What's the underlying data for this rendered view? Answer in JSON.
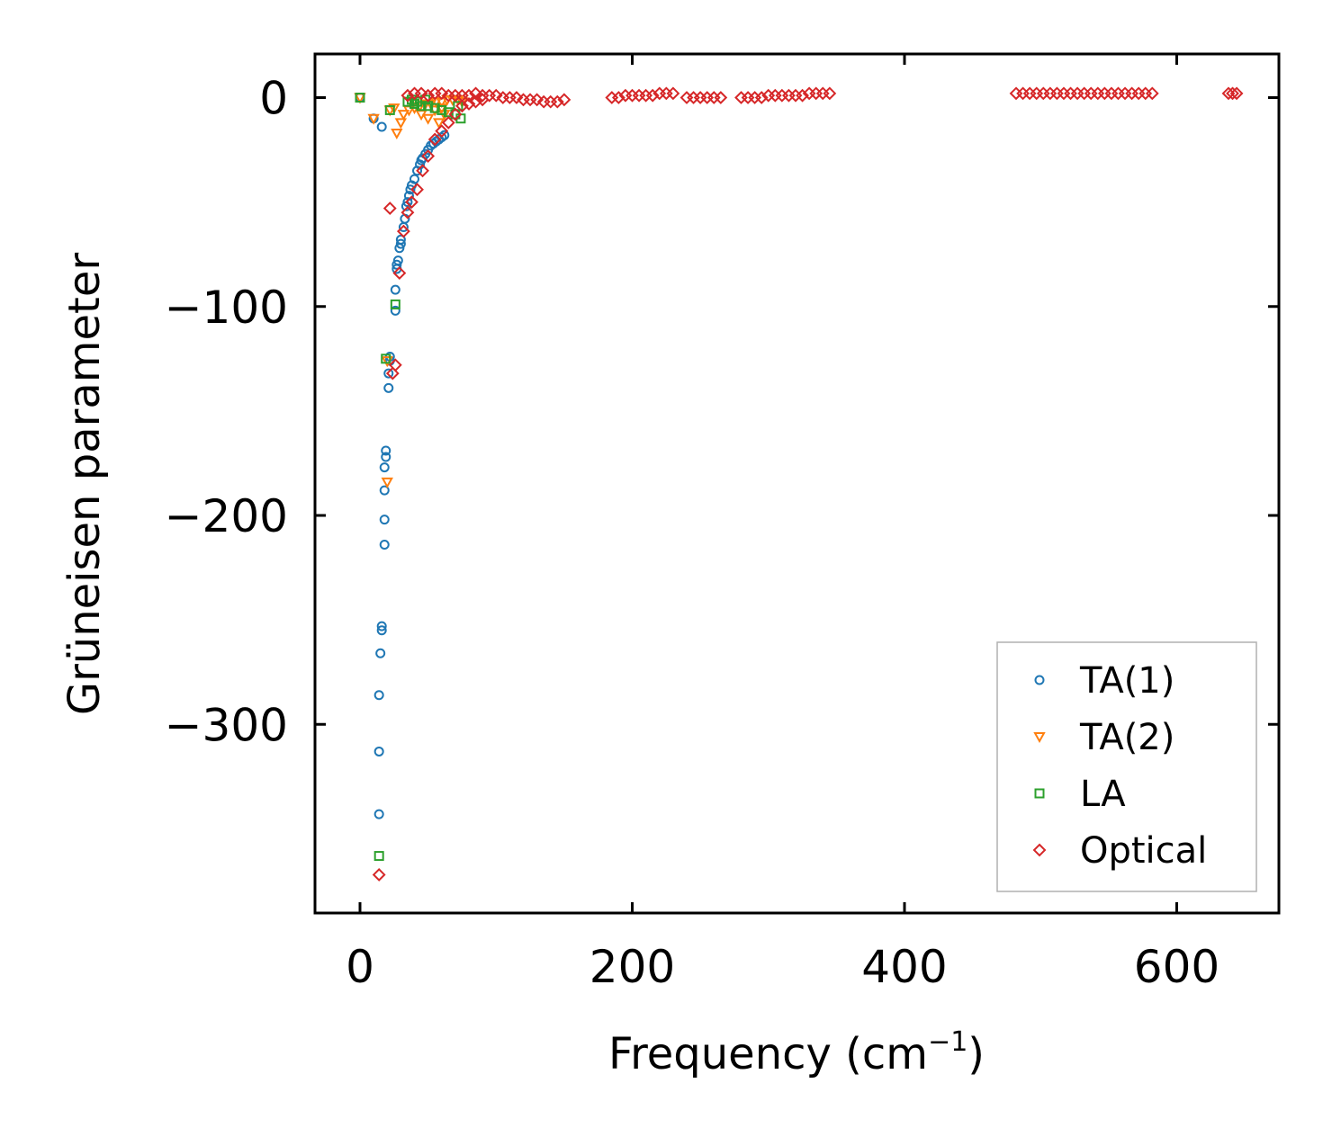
{
  "chart_data": {
    "type": "scatter",
    "title": "",
    "xlabel": "Frequency (cm",
    "xlabel_sup": "−1",
    "xlabel_close": ")",
    "ylabel": "Grüneisen parameter",
    "xlim": [
      -32,
      675
    ],
    "ylim": [
      -390,
      20
    ],
    "xticks": [
      0,
      200,
      400,
      600
    ],
    "xtick_labels": [
      "0",
      "200",
      "400",
      "600"
    ],
    "yticks": [
      0,
      -100,
      -200,
      -300
    ],
    "ytick_labels": [
      "0",
      "−100",
      "−200",
      "−300"
    ],
    "grid": false,
    "legend_position": "lower-right",
    "series": [
      {
        "name": "TA(1)",
        "color": "#1f77b4",
        "marker": "circle",
        "points": [
          [
            0,
            0
          ],
          [
            10,
            -10
          ],
          [
            16,
            -14
          ],
          [
            26,
            -102
          ],
          [
            26,
            -92
          ],
          [
            27,
            -82
          ],
          [
            27,
            -80
          ],
          [
            28,
            -78
          ],
          [
            29,
            -72
          ],
          [
            30,
            -70
          ],
          [
            30,
            -68
          ],
          [
            32,
            -62
          ],
          [
            33,
            -58
          ],
          [
            34,
            -52
          ],
          [
            35,
            -50
          ],
          [
            36,
            -47
          ],
          [
            37,
            -44
          ],
          [
            38,
            -42
          ],
          [
            40,
            -39
          ],
          [
            42,
            -35
          ],
          [
            44,
            -32
          ],
          [
            45,
            -30
          ],
          [
            46,
            -29
          ],
          [
            48,
            -27
          ],
          [
            50,
            -25
          ],
          [
            52,
            -23
          ],
          [
            54,
            -22
          ],
          [
            56,
            -21
          ],
          [
            58,
            -20
          ],
          [
            60,
            -19
          ],
          [
            62,
            -18
          ],
          [
            22,
            -124
          ],
          [
            22,
            -126
          ],
          [
            21,
            -132
          ],
          [
            21,
            -139
          ],
          [
            19,
            -169
          ],
          [
            19,
            -172
          ],
          [
            18,
            -177
          ],
          [
            18,
            -188
          ],
          [
            18,
            -202
          ],
          [
            18,
            -214
          ],
          [
            16,
            -253
          ],
          [
            16,
            -255
          ],
          [
            15,
            -266
          ],
          [
            14,
            -286
          ],
          [
            14,
            -313
          ],
          [
            14,
            -343
          ]
        ]
      },
      {
        "name": "TA(2)",
        "color": "#ff7f0e",
        "marker": "triangle-down",
        "points": [
          [
            0,
            0
          ],
          [
            10,
            -10
          ],
          [
            22,
            -6
          ],
          [
            25,
            -5
          ],
          [
            27,
            -17
          ],
          [
            30,
            -12
          ],
          [
            32,
            -8
          ],
          [
            36,
            -6
          ],
          [
            40,
            -5
          ],
          [
            44,
            -4
          ],
          [
            48,
            -3
          ],
          [
            52,
            -3
          ],
          [
            56,
            -2
          ],
          [
            60,
            -2
          ],
          [
            64,
            -1
          ],
          [
            68,
            -1
          ],
          [
            72,
            -1
          ],
          [
            75,
            -2
          ],
          [
            45,
            -8
          ],
          [
            50,
            -10
          ],
          [
            55,
            -6
          ],
          [
            60,
            -5
          ],
          [
            62,
            -8
          ],
          [
            58,
            -12
          ],
          [
            20,
            -126
          ],
          [
            20,
            -184
          ]
        ]
      },
      {
        "name": "LA",
        "color": "#2ca02c",
        "marker": "square",
        "points": [
          [
            0,
            0
          ],
          [
            19,
            -125
          ],
          [
            22,
            -6
          ],
          [
            26,
            -99
          ],
          [
            35,
            -2
          ],
          [
            40,
            -3
          ],
          [
            45,
            -4
          ],
          [
            50,
            -4
          ],
          [
            55,
            -5
          ],
          [
            60,
            -6
          ],
          [
            65,
            -7
          ],
          [
            70,
            -8
          ],
          [
            72,
            -4
          ],
          [
            74,
            -10
          ],
          [
            38,
            -1
          ],
          [
            42,
            -2
          ],
          [
            48,
            -1
          ],
          [
            14,
            -363
          ]
        ]
      },
      {
        "name": "Optical",
        "color": "#d62728",
        "marker": "diamond",
        "points": [
          [
            14,
            -372
          ],
          [
            22,
            -53
          ],
          [
            24,
            -132
          ],
          [
            26,
            -128
          ],
          [
            29,
            -84
          ],
          [
            32,
            -64
          ],
          [
            35,
            -55
          ],
          [
            38,
            -50
          ],
          [
            42,
            -44
          ],
          [
            46,
            -35
          ],
          [
            50,
            -28
          ],
          [
            55,
            -20
          ],
          [
            60,
            -16
          ],
          [
            65,
            -12
          ],
          [
            70,
            -8
          ],
          [
            75,
            -4
          ],
          [
            80,
            -3
          ],
          [
            85,
            -2
          ],
          [
            90,
            -1
          ],
          [
            35,
            1
          ],
          [
            40,
            2
          ],
          [
            45,
            2
          ],
          [
            50,
            1
          ],
          [
            55,
            2
          ],
          [
            60,
            2
          ],
          [
            65,
            1
          ],
          [
            70,
            1
          ],
          [
            75,
            1
          ],
          [
            80,
            1
          ],
          [
            85,
            2
          ],
          [
            90,
            1
          ],
          [
            95,
            1
          ],
          [
            100,
            1
          ],
          [
            105,
            0
          ],
          [
            110,
            0
          ],
          [
            115,
            0
          ],
          [
            120,
            -1
          ],
          [
            125,
            -1
          ],
          [
            130,
            -1
          ],
          [
            135,
            -2
          ],
          [
            140,
            -2
          ],
          [
            145,
            -2
          ],
          [
            150,
            -1
          ],
          [
            185,
            0
          ],
          [
            190,
            0
          ],
          [
            195,
            1
          ],
          [
            200,
            1
          ],
          [
            205,
            1
          ],
          [
            210,
            1
          ],
          [
            215,
            1
          ],
          [
            220,
            2
          ],
          [
            225,
            2
          ],
          [
            230,
            2
          ],
          [
            240,
            0
          ],
          [
            245,
            0
          ],
          [
            250,
            0
          ],
          [
            255,
            0
          ],
          [
            260,
            0
          ],
          [
            265,
            0
          ],
          [
            280,
            0
          ],
          [
            285,
            0
          ],
          [
            290,
            0
          ],
          [
            295,
            0
          ],
          [
            300,
            1
          ],
          [
            305,
            1
          ],
          [
            310,
            1
          ],
          [
            315,
            1
          ],
          [
            320,
            1
          ],
          [
            325,
            1
          ],
          [
            330,
            2
          ],
          [
            335,
            2
          ],
          [
            340,
            2
          ],
          [
            345,
            2
          ],
          [
            482,
            2
          ],
          [
            487,
            2
          ],
          [
            492,
            2
          ],
          [
            497,
            2
          ],
          [
            502,
            2
          ],
          [
            507,
            2
          ],
          [
            512,
            2
          ],
          [
            517,
            2
          ],
          [
            522,
            2
          ],
          [
            527,
            2
          ],
          [
            532,
            2
          ],
          [
            537,
            2
          ],
          [
            542,
            2
          ],
          [
            547,
            2
          ],
          [
            552,
            2
          ],
          [
            557,
            2
          ],
          [
            562,
            2
          ],
          [
            567,
            2
          ],
          [
            572,
            2
          ],
          [
            577,
            2
          ],
          [
            582,
            2
          ],
          [
            638,
            2
          ],
          [
            641,
            2
          ],
          [
            644,
            2
          ]
        ]
      }
    ]
  }
}
